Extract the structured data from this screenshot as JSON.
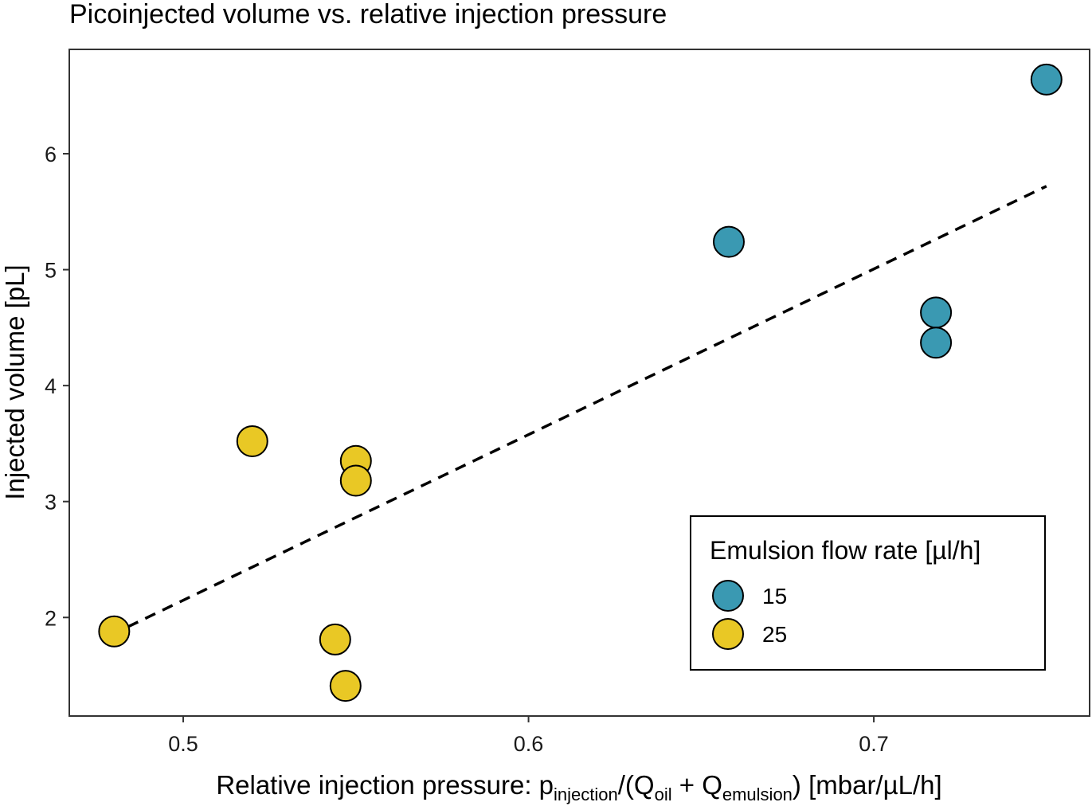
{
  "chart_data": {
    "type": "scatter",
    "title": "Picoinjected volume vs. relative injection pressure",
    "xlabel": {
      "prefix": "Relative injection pressure: p",
      "sub1": "injection",
      "mid1": "/(Q",
      "sub2": "oil",
      "mid2": " + Q",
      "sub3": "emulsion",
      "suffix": ") [mbar/µL/h]"
    },
    "ylabel": "Injected volume [pL]",
    "xlim": [
      0.467,
      0.7625
    ],
    "ylim": [
      1.15,
      6.9
    ],
    "xticks": [
      {
        "value": 0.5,
        "label": "0.5"
      },
      {
        "value": 0.6,
        "label": "0.6"
      },
      {
        "value": 0.7,
        "label": "0.7"
      }
    ],
    "yticks": [
      {
        "value": 2,
        "label": "2"
      },
      {
        "value": 3,
        "label": "3"
      },
      {
        "value": 4,
        "label": "4"
      },
      {
        "value": 5,
        "label": "5"
      },
      {
        "value": 6,
        "label": "6"
      }
    ],
    "grid": false,
    "legend": {
      "title": "Emulsion flow rate [µl/h]",
      "placement": "bottom-right"
    },
    "series": [
      {
        "name": "15",
        "color": "#3a99b2",
        "points": [
          {
            "x": 0.658,
            "y": 5.24
          },
          {
            "x": 0.718,
            "y": 4.63
          },
          {
            "x": 0.718,
            "y": 4.37
          },
          {
            "x": 0.75,
            "y": 6.64
          }
        ]
      },
      {
        "name": "25",
        "color": "#e9c825",
        "points": [
          {
            "x": 0.48,
            "y": 1.88
          },
          {
            "x": 0.52,
            "y": 3.52
          },
          {
            "x": 0.544,
            "y": 1.81
          },
          {
            "x": 0.547,
            "y": 1.41
          },
          {
            "x": 0.55,
            "y": 3.35
          },
          {
            "x": 0.55,
            "y": 3.18
          }
        ]
      }
    ],
    "trendline": {
      "style": "dashed",
      "color": "#000000",
      "x": [
        0.484,
        0.75
      ],
      "y": [
        1.92,
        5.72
      ]
    }
  }
}
